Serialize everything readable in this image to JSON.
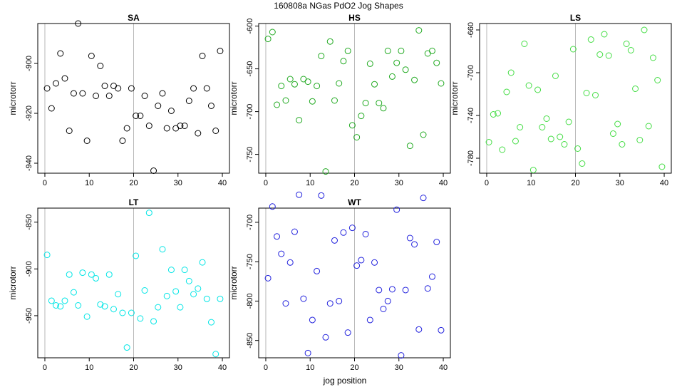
{
  "figure": {
    "title": "160808a   NGas PdO2 Jog Shapes",
    "xlabel": "jog position"
  },
  "chart_data": [
    {
      "type": "scatter",
      "title": "SA",
      "ylabel": "microtorr",
      "color": "#000000",
      "xlim": [
        0,
        40
      ],
      "ylim": [
        -944,
        -884
      ],
      "xticks": [
        0,
        10,
        20,
        30,
        40
      ],
      "yticks": [
        -940,
        -920,
        -900
      ],
      "vlines": [
        0,
        20
      ],
      "x": [
        0.5,
        1.5,
        2.5,
        3.5,
        4.5,
        5.5,
        6.5,
        7.5,
        8.5,
        9.5,
        10.5,
        11.5,
        12.5,
        13.5,
        14.5,
        15.5,
        16.5,
        17.5,
        18.5,
        19.5,
        20.5,
        21.5,
        22.5,
        23.5,
        24.5,
        25.5,
        26.5,
        27.5,
        28.5,
        29.5,
        30.5,
        31.5,
        32.5,
        33.5,
        34.5,
        35.5,
        36.5,
        37.5,
        38.5,
        39.5
      ],
      "y": [
        -910,
        -918,
        -908,
        -896,
        -906,
        -927,
        -912,
        -884,
        -912,
        -931,
        -897,
        -913,
        -901,
        -909,
        -913,
        -909,
        -910,
        -931,
        -926,
        -910,
        -921,
        -921,
        -913,
        -925,
        -943,
        -917,
        -912,
        -926,
        -919,
        -926,
        -925,
        -925,
        -915,
        -910,
        -928,
        -897,
        -910,
        -917,
        -927,
        -895
      ]
    },
    {
      "type": "scatter",
      "title": "HS",
      "ylabel": "microtorr",
      "color": "#22aa22",
      "xlim": [
        0,
        40
      ],
      "ylim": [
        -772,
        -597
      ],
      "xticks": [
        0,
        10,
        20,
        30,
        40
      ],
      "yticks": [
        -750,
        -700,
        -650,
        -600
      ],
      "vlines": [
        0,
        20
      ],
      "x": [
        0.5,
        1.5,
        2.5,
        3.5,
        4.5,
        5.5,
        6.5,
        7.5,
        8.5,
        9.5,
        10.5,
        11.5,
        12.5,
        13.5,
        14.5,
        15.5,
        16.5,
        17.5,
        18.5,
        19.5,
        20.5,
        21.5,
        22.5,
        23.5,
        24.5,
        25.5,
        26.5,
        27.5,
        28.5,
        29.5,
        30.5,
        31.5,
        32.5,
        33.5,
        34.5,
        35.5,
        36.5,
        37.5,
        38.5,
        39.5
      ],
      "y": [
        -615,
        -607,
        -692,
        -670,
        -687,
        -662,
        -668,
        -710,
        -662,
        -665,
        -688,
        -670,
        -635,
        -770,
        -618,
        -687,
        -667,
        -641,
        -629,
        -716,
        -730,
        -705,
        -690,
        -644,
        -668,
        -690,
        -696,
        -629,
        -659,
        -643,
        -629,
        -651,
        -740,
        -663,
        -605,
        -727,
        -632,
        -629,
        -643,
        -667
      ]
    },
    {
      "type": "scatter",
      "title": "LS",
      "ylabel": "microtorr",
      "color": "#44dd44",
      "xlim": [
        0,
        40
      ],
      "ylim": [
        -794,
        -654
      ],
      "xticks": [
        0,
        10,
        20,
        30,
        40
      ],
      "yticks": [
        -780,
        -740,
        -700,
        -660
      ],
      "vlines": [
        0,
        20
      ],
      "x": [
        0.5,
        1.5,
        2.5,
        3.5,
        4.5,
        5.5,
        6.5,
        7.5,
        8.5,
        9.5,
        10.5,
        11.5,
        12.5,
        13.5,
        14.5,
        15.5,
        16.5,
        17.5,
        18.5,
        19.5,
        20.5,
        21.5,
        22.5,
        23.5,
        24.5,
        25.5,
        26.5,
        27.5,
        28.5,
        29.5,
        30.5,
        31.5,
        32.5,
        33.5,
        34.5,
        35.5,
        36.5,
        37.5,
        38.5,
        39.5
      ],
      "y": [
        -765,
        -739,
        -738,
        -772,
        -718,
        -700,
        -764,
        -751,
        -673,
        -712,
        -791,
        -716,
        -751,
        -743,
        -762,
        -703,
        -760,
        -767,
        -746,
        -678,
        -771,
        -785,
        -719,
        -669,
        -721,
        -683,
        -664,
        -684,
        -757,
        -748,
        -767,
        -673,
        -679,
        -715,
        -763,
        -660,
        -750,
        -686,
        -707,
        -788
      ]
    },
    {
      "type": "scatter",
      "title": "LT",
      "ylabel": "microtorr",
      "color": "#00e5e5",
      "xlim": [
        0,
        40
      ],
      "ylim": [
        -995,
        -835
      ],
      "xticks": [
        0,
        10,
        20,
        30,
        40
      ],
      "yticks": [
        -950,
        -900,
        -850
      ],
      "vlines": [
        0,
        20
      ],
      "x": [
        0.5,
        1.5,
        2.5,
        3.5,
        4.5,
        5.5,
        6.5,
        7.5,
        8.5,
        9.5,
        10.5,
        11.5,
        12.5,
        13.5,
        14.5,
        15.5,
        16.5,
        17.5,
        18.5,
        19.5,
        20.5,
        21.5,
        22.5,
        23.5,
        24.5,
        25.5,
        26.5,
        27.5,
        28.5,
        29.5,
        30.5,
        31.5,
        32.5,
        33.5,
        34.5,
        35.5,
        36.5,
        37.5,
        38.5,
        39.5
      ],
      "y": [
        -885,
        -934,
        -939,
        -940,
        -934,
        -906,
        -925,
        -939,
        -904,
        -951,
        -906,
        -910,
        -938,
        -940,
        -906,
        -943,
        -927,
        -947,
        -984,
        -947,
        -886,
        -953,
        -923,
        -840,
        -956,
        -941,
        -879,
        -929,
        -901,
        -924,
        -941,
        -901,
        -913,
        -927,
        -921,
        -893,
        -932,
        -957,
        -991,
        -932
      ]
    },
    {
      "type": "scatter",
      "title": "WT",
      "ylabel": "microtorr",
      "color": "#2222dd",
      "xlim": [
        0,
        40
      ],
      "ylim": [
        -872,
        -682
      ],
      "xticks": [
        0,
        10,
        20,
        30,
        40
      ],
      "yticks": [
        -850,
        -800,
        -750,
        -700
      ],
      "vlines": [
        0,
        20
      ],
      "x": [
        0.5,
        1.5,
        2.5,
        3.5,
        4.5,
        5.5,
        6.5,
        7.5,
        8.5,
        9.5,
        10.5,
        11.5,
        12.5,
        13.5,
        14.5,
        15.5,
        16.5,
        17.5,
        18.5,
        19.5,
        20.5,
        21.5,
        22.5,
        23.5,
        24.5,
        25.5,
        26.5,
        27.5,
        28.5,
        29.5,
        30.5,
        31.5,
        32.5,
        33.5,
        34.5,
        35.5,
        36.5,
        37.5,
        38.5,
        39.5
      ],
      "y": [
        -771,
        -680,
        -718,
        -740,
        -803,
        -751,
        -712,
        -665,
        -797,
        -866,
        -824,
        -762,
        -666,
        -846,
        -803,
        -723,
        -800,
        -713,
        -840,
        -707,
        -755,
        -748,
        -715,
        -824,
        -751,
        -786,
        -810,
        -800,
        -785,
        -684,
        -869,
        -786,
        -720,
        -728,
        -836,
        -669,
        -784,
        -769,
        -725,
        -837
      ]
    }
  ]
}
